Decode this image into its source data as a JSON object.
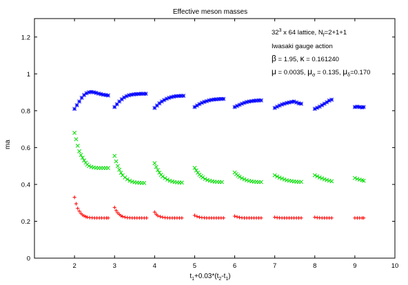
{
  "chart_data": {
    "type": "scatter",
    "title": "Effective meson masses",
    "ylabel": "ma",
    "xlabel_parts": [
      "t",
      "1",
      "+0.03*(t",
      "2",
      "-t",
      "1",
      ")"
    ],
    "xlim": [
      1,
      10
    ],
    "ylim": [
      0,
      1.3
    ],
    "xticks": [
      2,
      3,
      4,
      5,
      6,
      7,
      8,
      9,
      10
    ],
    "yticks": [
      0,
      0.2,
      0.4,
      0.6,
      0.8,
      1,
      1.2
    ],
    "xtick_labels": [
      "2",
      "3",
      "4",
      "5",
      "6",
      "7",
      "8",
      "9",
      "10"
    ],
    "ytick_labels": [
      "0",
      "0.2",
      "0.4",
      "0.6",
      "0.8",
      "1",
      "1.2"
    ],
    "grid": false,
    "legend_position": "top-right",
    "annotation": {
      "line1": {
        "base": "32",
        "sup": "3",
        "rest": " x 64 lattice, N",
        "sub": "f",
        "tail": "=2+1+1"
      },
      "line2": "Iwasaki gauge action",
      "line3": {
        "beta_sym": "β",
        "beta_val": " = 1.95,  ",
        "kappa_sym": "κ",
        "kappa_val": " = 0.161240"
      },
      "line4": {
        "mu_sym": "μ",
        "mu_val": " = 0.0035,  ",
        "musig_sym": "μ",
        "musig_sub": "σ",
        "musig_val": " = 0.135,  ",
        "mudel_sym": "μ",
        "mudel_sub": "δ",
        "mudel_val": "=0.170"
      }
    },
    "series": [
      {
        "color": "#0000ff",
        "marker": "star",
        "groups": [
          {
            "x": [
              2.0,
              2.06,
              2.12,
              2.18,
              2.24,
              2.3,
              2.36,
              2.42,
              2.48,
              2.54,
              2.6,
              2.66,
              2.72,
              2.78,
              2.84
            ],
            "y": [
              0.81,
              0.83,
              0.85,
              0.87,
              0.885,
              0.895,
              0.9,
              0.902,
              0.9,
              0.897,
              0.893,
              0.89,
              0.887,
              0.885,
              0.883
            ]
          },
          {
            "x": [
              3.0,
              3.06,
              3.12,
              3.18,
              3.24,
              3.3,
              3.36,
              3.42,
              3.48,
              3.54,
              3.6,
              3.66,
              3.72,
              3.78
            ],
            "y": [
              0.82,
              0.835,
              0.85,
              0.862,
              0.872,
              0.879,
              0.884,
              0.887,
              0.889,
              0.89,
              0.891,
              0.892,
              0.892,
              0.892
            ]
          },
          {
            "x": [
              4.0,
              4.06,
              4.12,
              4.18,
              4.24,
              4.3,
              4.36,
              4.42,
              4.48,
              4.54,
              4.6,
              4.66,
              4.72
            ],
            "y": [
              0.815,
              0.828,
              0.84,
              0.85,
              0.858,
              0.865,
              0.87,
              0.874,
              0.877,
              0.879,
              0.88,
              0.881,
              0.881
            ]
          },
          {
            "x": [
              5.0,
              5.06,
              5.12,
              5.18,
              5.24,
              5.3,
              5.36,
              5.42,
              5.48,
              5.54,
              5.6,
              5.66,
              5.72
            ],
            "y": [
              0.82,
              0.828,
              0.836,
              0.843,
              0.848,
              0.852,
              0.856,
              0.859,
              0.861,
              0.862,
              0.863,
              0.864,
              0.864
            ]
          },
          {
            "x": [
              6.0,
              6.06,
              6.12,
              6.18,
              6.24,
              6.3,
              6.36,
              6.42,
              6.48,
              6.54,
              6.6,
              6.66
            ],
            "y": [
              0.82,
              0.826,
              0.832,
              0.838,
              0.843,
              0.847,
              0.85,
              0.852,
              0.854,
              0.855,
              0.856,
              0.856
            ]
          },
          {
            "x": [
              7.0,
              7.06,
              7.12,
              7.18,
              7.24,
              7.3,
              7.36,
              7.42,
              7.48,
              7.54,
              7.6,
              7.66
            ],
            "y": [
              0.815,
              0.822,
              0.828,
              0.834,
              0.838,
              0.842,
              0.845,
              0.848,
              0.85,
              0.845,
              0.84,
              0.838
            ]
          },
          {
            "x": [
              8.0,
              8.06,
              8.12,
              8.18,
              8.24,
              8.3,
              8.36,
              8.42
            ],
            "y": [
              0.81,
              0.816,
              0.822,
              0.83,
              0.838,
              0.846,
              0.855,
              0.86
            ]
          },
          {
            "x": [
              9.0,
              9.06,
              9.12,
              9.18,
              9.22
            ],
            "y": [
              0.82,
              0.822,
              0.82,
              0.818,
              0.82
            ]
          }
        ]
      },
      {
        "color": "#00dd00",
        "marker": "x",
        "groups": [
          {
            "x": [
              2.0,
              2.04,
              2.08,
              2.12,
              2.16,
              2.2,
              2.24,
              2.28,
              2.32,
              2.36,
              2.42,
              2.48,
              2.54,
              2.6,
              2.66,
              2.72,
              2.78,
              2.84
            ],
            "y": [
              0.68,
              0.645,
              0.61,
              0.58,
              0.56,
              0.545,
              0.53,
              0.518,
              0.508,
              0.5,
              0.495,
              0.492,
              0.49,
              0.489,
              0.489,
              0.489,
              0.489,
              0.489
            ]
          },
          {
            "x": [
              3.0,
              3.04,
              3.08,
              3.12,
              3.16,
              3.2,
              3.26,
              3.32,
              3.38,
              3.44,
              3.5,
              3.56,
              3.62,
              3.68,
              3.74
            ],
            "y": [
              0.555,
              0.525,
              0.5,
              0.48,
              0.463,
              0.45,
              0.438,
              0.428,
              0.42,
              0.415,
              0.412,
              0.41,
              0.409,
              0.408,
              0.408
            ]
          },
          {
            "x": [
              4.0,
              4.04,
              4.08,
              4.12,
              4.16,
              4.2,
              4.26,
              4.32,
              4.38,
              4.44,
              4.5,
              4.56,
              4.62,
              4.68
            ],
            "y": [
              0.515,
              0.495,
              0.478,
              0.464,
              0.452,
              0.443,
              0.434,
              0.426,
              0.42,
              0.416,
              0.413,
              0.411,
              0.41,
              0.41
            ]
          },
          {
            "x": [
              5.0,
              5.04,
              5.08,
              5.12,
              5.16,
              5.2,
              5.26,
              5.32,
              5.38,
              5.44,
              5.5,
              5.56,
              5.62,
              5.68
            ],
            "y": [
              0.49,
              0.476,
              0.464,
              0.453,
              0.445,
              0.438,
              0.43,
              0.424,
              0.42,
              0.417,
              0.415,
              0.414,
              0.413,
              0.413
            ]
          },
          {
            "x": [
              6.0,
              6.04,
              6.08,
              6.12,
              6.18,
              6.24,
              6.3,
              6.36,
              6.42,
              6.48,
              6.54,
              6.6,
              6.66
            ],
            "y": [
              0.465,
              0.456,
              0.448,
              0.441,
              0.434,
              0.428,
              0.423,
              0.419,
              0.417,
              0.415,
              0.414,
              0.413,
              0.413
            ]
          },
          {
            "x": [
              7.0,
              7.06,
              7.12,
              7.18,
              7.24,
              7.3,
              7.36,
              7.42,
              7.48,
              7.54,
              7.6,
              7.66
            ],
            "y": [
              0.45,
              0.443,
              0.437,
              0.432,
              0.427,
              0.423,
              0.42,
              0.418,
              0.416,
              0.415,
              0.414,
              0.414
            ]
          },
          {
            "x": [
              8.0,
              8.06,
              8.12,
              8.18,
              8.24,
              8.3,
              8.36,
              8.42
            ],
            "y": [
              0.45,
              0.444,
              0.438,
              0.433,
              0.428,
              0.424,
              0.42,
              0.417
            ]
          },
          {
            "x": [
              9.0,
              9.06,
              9.12,
              9.18,
              9.22
            ],
            "y": [
              0.435,
              0.43,
              0.426,
              0.423,
              0.42
            ]
          }
        ]
      },
      {
        "color": "#ff0000",
        "marker": "plus",
        "groups": [
          {
            "x": [
              2.0,
              2.04,
              2.08,
              2.12,
              2.16,
              2.2,
              2.24,
              2.28,
              2.32,
              2.38,
              2.44,
              2.5,
              2.56,
              2.62,
              2.68,
              2.74,
              2.8,
              2.84
            ],
            "y": [
              0.33,
              0.295,
              0.27,
              0.255,
              0.243,
              0.235,
              0.229,
              0.225,
              0.222,
              0.22,
              0.219,
              0.218,
              0.218,
              0.218,
              0.218,
              0.218,
              0.218,
              0.218
            ]
          },
          {
            "x": [
              3.0,
              3.04,
              3.08,
              3.12,
              3.16,
              3.2,
              3.26,
              3.32,
              3.38,
              3.44,
              3.5,
              3.56,
              3.62,
              3.68,
              3.74,
              3.8
            ],
            "y": [
              0.275,
              0.258,
              0.246,
              0.237,
              0.23,
              0.226,
              0.222,
              0.22,
              0.219,
              0.218,
              0.218,
              0.218,
              0.218,
              0.218,
              0.218,
              0.218
            ]
          },
          {
            "x": [
              4.0,
              4.04,
              4.08,
              4.14,
              4.2,
              4.26,
              4.32,
              4.38,
              4.44,
              4.5,
              4.56,
              4.62,
              4.68
            ],
            "y": [
              0.25,
              0.238,
              0.23,
              0.225,
              0.222,
              0.22,
              0.219,
              0.218,
              0.218,
              0.218,
              0.218,
              0.218,
              0.218
            ]
          },
          {
            "x": [
              5.0,
              5.06,
              5.12,
              5.18,
              5.24,
              5.3,
              5.36,
              5.42,
              5.48,
              5.54,
              5.6,
              5.66,
              5.72
            ],
            "y": [
              0.232,
              0.226,
              0.222,
              0.22,
              0.219,
              0.218,
              0.218,
              0.218,
              0.218,
              0.218,
              0.218,
              0.218,
              0.218
            ]
          },
          {
            "x": [
              6.0,
              6.06,
              6.12,
              6.18,
              6.24,
              6.3,
              6.36,
              6.42,
              6.48,
              6.54,
              6.6,
              6.66
            ],
            "y": [
              0.228,
              0.224,
              0.221,
              0.219,
              0.218,
              0.218,
              0.218,
              0.218,
              0.218,
              0.218,
              0.218,
              0.218
            ]
          },
          {
            "x": [
              7.0,
              7.06,
              7.12,
              7.18,
              7.24,
              7.3,
              7.36,
              7.42,
              7.48,
              7.54,
              7.6,
              7.66
            ],
            "y": [
              0.222,
              0.22,
              0.219,
              0.218,
              0.218,
              0.218,
              0.218,
              0.218,
              0.218,
              0.218,
              0.218,
              0.218
            ]
          },
          {
            "x": [
              8.0,
              8.06,
              8.12,
              8.18,
              8.24,
              8.3,
              8.36,
              8.42
            ],
            "y": [
              0.222,
              0.22,
              0.219,
              0.218,
              0.218,
              0.218,
              0.218,
              0.218
            ]
          },
          {
            "x": [
              9.0,
              9.06,
              9.12,
              9.18,
              9.22
            ],
            "y": [
              0.218,
              0.218,
              0.218,
              0.218,
              0.218
            ]
          }
        ]
      }
    ]
  }
}
